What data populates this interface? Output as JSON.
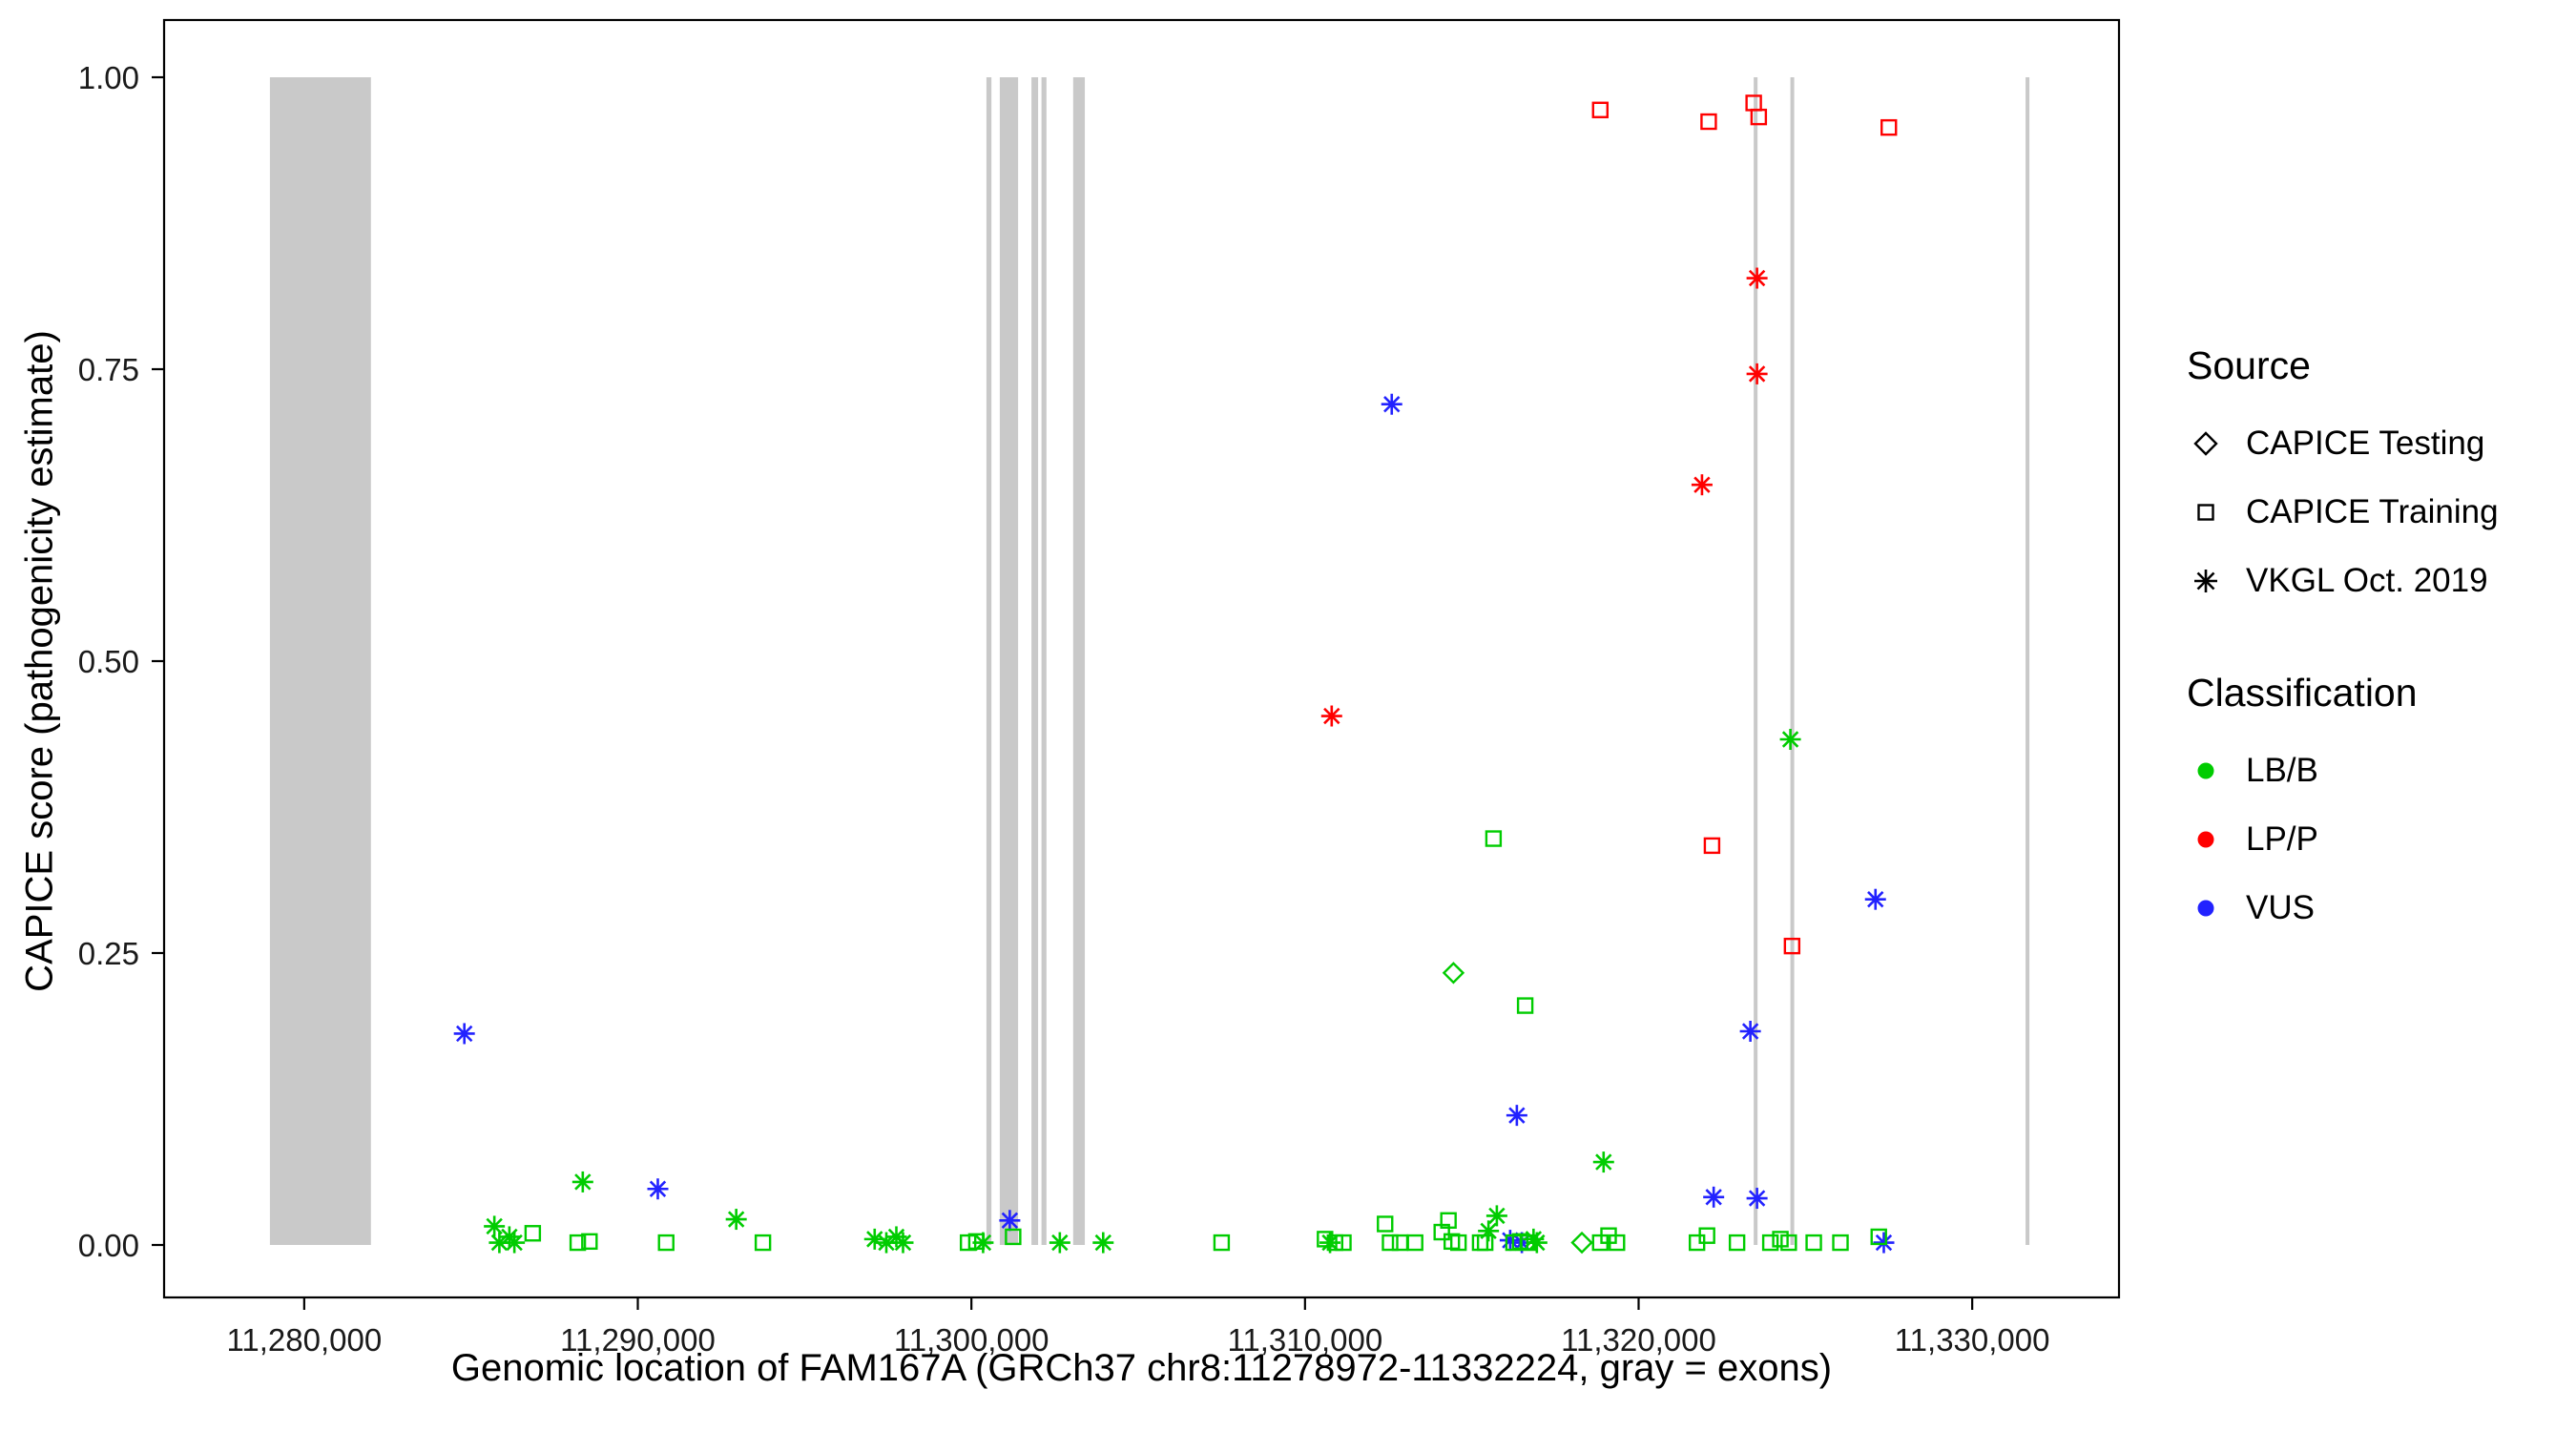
{
  "legend": {
    "source_title": "Source",
    "source_items": [
      {
        "marker": "diamond",
        "label": "CAPICE Testing"
      },
      {
        "marker": "square",
        "label": "CAPICE Training"
      },
      {
        "marker": "asterisk",
        "label": "VKGL Oct. 2019"
      }
    ],
    "classification_title": "Classification",
    "classification_items": [
      {
        "color": "#00CC00",
        "label": "LB/B"
      },
      {
        "color": "#FF0000",
        "label": "LP/P"
      },
      {
        "color": "#2222FF",
        "label": "VUS"
      }
    ]
  },
  "chart_data": {
    "type": "scatter",
    "title": "",
    "xlabel": "Genomic location of FAM167A (GRCh37 chr8:11278972-11332224, gray = exons)",
    "ylabel": "CAPICE score (pathogenicity estimate)",
    "xlim": [
      11275800,
      11334400
    ],
    "ylim": [
      0,
      1
    ],
    "grid": "off",
    "legend_position": "right",
    "exon_color": "#C9C9C9",
    "x_ticks": [
      {
        "value": 11280000,
        "label": "11,280,000"
      },
      {
        "value": 11290000,
        "label": "11,290,000"
      },
      {
        "value": 11300000,
        "label": "11,300,000"
      },
      {
        "value": 11310000,
        "label": "11,310,000"
      },
      {
        "value": 11320000,
        "label": "11,320,000"
      },
      {
        "value": 11330000,
        "label": "11,330,000"
      }
    ],
    "y_ticks": [
      {
        "value": 0.0,
        "label": "0.00"
      },
      {
        "value": 0.25,
        "label": "0.25"
      },
      {
        "value": 0.5,
        "label": "0.50"
      },
      {
        "value": 0.75,
        "label": "0.75"
      },
      {
        "value": 1.0,
        "label": "1.00"
      }
    ],
    "exons": [
      [
        11278972,
        11282000
      ],
      [
        11300450,
        11300600
      ],
      [
        11300850,
        11301400
      ],
      [
        11301800,
        11302000
      ],
      [
        11302100,
        11302250
      ],
      [
        11303050,
        11303400
      ],
      [
        11323450,
        11323520
      ],
      [
        11324550,
        11324620
      ],
      [
        11331600,
        11331680
      ]
    ],
    "series": [
      {
        "name": "LP/P - CAPICE Training",
        "classification": "LP/P",
        "source": "CAPICE Training",
        "marker": "square",
        "color": "#FF0000",
        "points": [
          [
            11318850,
            0.972
          ],
          [
            11322100,
            0.962
          ],
          [
            11323450,
            0.978
          ],
          [
            11323600,
            0.966
          ],
          [
            11327500,
            0.957
          ],
          [
            11322200,
            0.342
          ],
          [
            11324600,
            0.256
          ]
        ]
      },
      {
        "name": "LP/P - VKGL Oct. 2019",
        "classification": "LP/P",
        "source": "VKGL Oct. 2019",
        "marker": "asterisk",
        "color": "#FF0000",
        "points": [
          [
            11323550,
            0.828
          ],
          [
            11323550,
            0.746
          ],
          [
            11321900,
            0.651
          ],
          [
            11310800,
            0.453
          ]
        ]
      },
      {
        "name": "VUS - VKGL Oct. 2019",
        "classification": "VUS",
        "source": "VKGL Oct. 2019",
        "marker": "asterisk",
        "color": "#2222FF",
        "points": [
          [
            11312600,
            0.72
          ],
          [
            11327100,
            0.296
          ],
          [
            11284800,
            0.181
          ],
          [
            11323350,
            0.183
          ],
          [
            11316350,
            0.111
          ],
          [
            11290600,
            0.048
          ],
          [
            11322250,
            0.041
          ],
          [
            11323550,
            0.04
          ],
          [
            11301150,
            0.021
          ],
          [
            11316150,
            0.004
          ],
          [
            11316500,
            0.002
          ],
          [
            11327350,
            0.002
          ]
        ]
      },
      {
        "name": "LB/B - CAPICE Testing",
        "classification": "LB/B",
        "source": "CAPICE Testing",
        "marker": "diamond",
        "color": "#00CC00",
        "points": [
          [
            11314450,
            0.233
          ],
          [
            11318300,
            0.002
          ]
        ]
      },
      {
        "name": "LB/B - CAPICE Training",
        "classification": "LB/B",
        "source": "CAPICE Training",
        "marker": "square",
        "color": "#00CC00",
        "points": [
          [
            11315650,
            0.348
          ],
          [
            11316600,
            0.205
          ],
          [
            11286850,
            0.01
          ],
          [
            11288200,
            0.002
          ],
          [
            11288550,
            0.003
          ],
          [
            11290850,
            0.002
          ],
          [
            11293750,
            0.002
          ],
          [
            11299900,
            0.002
          ],
          [
            11300150,
            0.003
          ],
          [
            11301250,
            0.007
          ],
          [
            11307500,
            0.002
          ],
          [
            11310600,
            0.005
          ],
          [
            11310900,
            0.002
          ],
          [
            11311150,
            0.002
          ],
          [
            11312400,
            0.018
          ],
          [
            11312550,
            0.002
          ],
          [
            11312850,
            0.002
          ],
          [
            11313300,
            0.002
          ],
          [
            11314100,
            0.011
          ],
          [
            11314300,
            0.021
          ],
          [
            11314400,
            0.003
          ],
          [
            11314600,
            0.002
          ],
          [
            11315250,
            0.002
          ],
          [
            11315400,
            0.002
          ],
          [
            11316250,
            0.002
          ],
          [
            11316450,
            0.003
          ],
          [
            11316700,
            0.002
          ],
          [
            11318850,
            0.002
          ],
          [
            11319100,
            0.008
          ],
          [
            11319350,
            0.002
          ],
          [
            11321750,
            0.002
          ],
          [
            11322050,
            0.008
          ],
          [
            11322950,
            0.002
          ],
          [
            11323950,
            0.002
          ],
          [
            11324250,
            0.005
          ],
          [
            11324500,
            0.002
          ],
          [
            11325250,
            0.002
          ],
          [
            11326050,
            0.002
          ],
          [
            11327200,
            0.007
          ]
        ]
      },
      {
        "name": "LB/B - VKGL Oct. 2019",
        "classification": "LB/B",
        "source": "VKGL Oct. 2019",
        "marker": "asterisk",
        "color": "#00CC00",
        "points": [
          [
            11324550,
            0.433
          ],
          [
            11318950,
            0.071
          ],
          [
            11288350,
            0.054
          ],
          [
            11292950,
            0.022
          ],
          [
            11285700,
            0.016
          ],
          [
            11285850,
            0.002
          ],
          [
            11286150,
            0.007
          ],
          [
            11286300,
            0.002
          ],
          [
            11297100,
            0.005
          ],
          [
            11297450,
            0.002
          ],
          [
            11297750,
            0.007
          ],
          [
            11297950,
            0.002
          ],
          [
            11300350,
            0.002
          ],
          [
            11302650,
            0.002
          ],
          [
            11303950,
            0.002
          ],
          [
            11310750,
            0.002
          ],
          [
            11315500,
            0.012
          ],
          [
            11315750,
            0.025
          ],
          [
            11316850,
            0.005
          ],
          [
            11316950,
            0.002
          ]
        ]
      }
    ]
  }
}
